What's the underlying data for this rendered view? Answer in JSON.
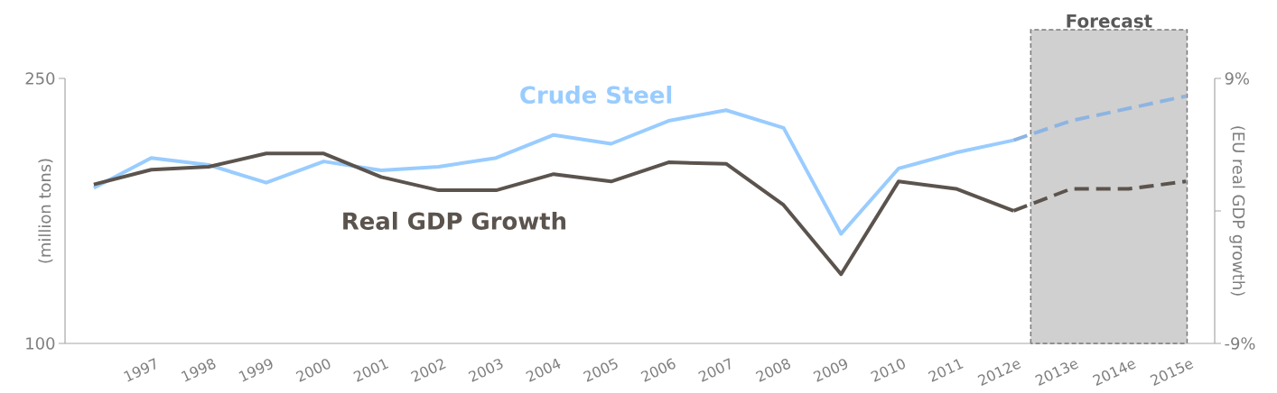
{
  "chart_data": {
    "type": "line",
    "ylabel": "(million tons)",
    "y2label": "(EU real GDP growth)",
    "categories": [
      null,
      "1997",
      "1998",
      "1999",
      "2000",
      "2001",
      "2002",
      "2003",
      "2004",
      "2005",
      "2006",
      "2007",
      "2008",
      "2009",
      "2010",
      "2011",
      "2012e",
      "2013e",
      "2014e",
      "2015e"
    ],
    "series": [
      {
        "name": "Crude Steel",
        "color": "#99ccff",
        "values": [
          188,
          205,
          201,
          191,
          203,
          198,
          200,
          205,
          218,
          213,
          226,
          232,
          222,
          162,
          199,
          208,
          215,
          null,
          null,
          null
        ]
      },
      {
        "color": "#8db4e2",
        "line_style": "dashed",
        "values": [
          null,
          null,
          null,
          null,
          null,
          null,
          null,
          null,
          null,
          null,
          null,
          null,
          null,
          null,
          null,
          null,
          215,
          226,
          233,
          240
        ]
      },
      {
        "name": "Real GDP Growth",
        "color": "#5b534d",
        "axis": "y2",
        "values": [
          1.8,
          2.8,
          3.0,
          3.9,
          3.9,
          2.3,
          1.4,
          1.4,
          2.5,
          2.0,
          3.3,
          3.2,
          0.4,
          -4.3,
          2.0,
          1.5,
          0.0,
          null,
          null,
          null
        ]
      },
      {
        "color": "#5b534d",
        "axis": "y2",
        "line_style": "dashed",
        "values": [
          null,
          null,
          null,
          null,
          null,
          null,
          null,
          null,
          null,
          null,
          null,
          null,
          null,
          null,
          null,
          null,
          0.0,
          1.5,
          1.5,
          2.0
        ]
      }
    ],
    "ylim": [
      100,
      250
    ],
    "yticks": [
      100,
      250
    ],
    "y2lim": [
      -9,
      9
    ],
    "y2ticks": [
      {
        "value": -9,
        "label": "-9%"
      },
      {
        "value": 0,
        "label": null
      },
      {
        "value": 9,
        "label": "9%"
      }
    ],
    "bands": [
      {
        "axis": "x",
        "from": "2013e",
        "to": "2015e",
        "label": "Forecast",
        "color": "#d0d0d0"
      }
    ],
    "grid": false,
    "marker": "none",
    "line_style": "solid"
  }
}
